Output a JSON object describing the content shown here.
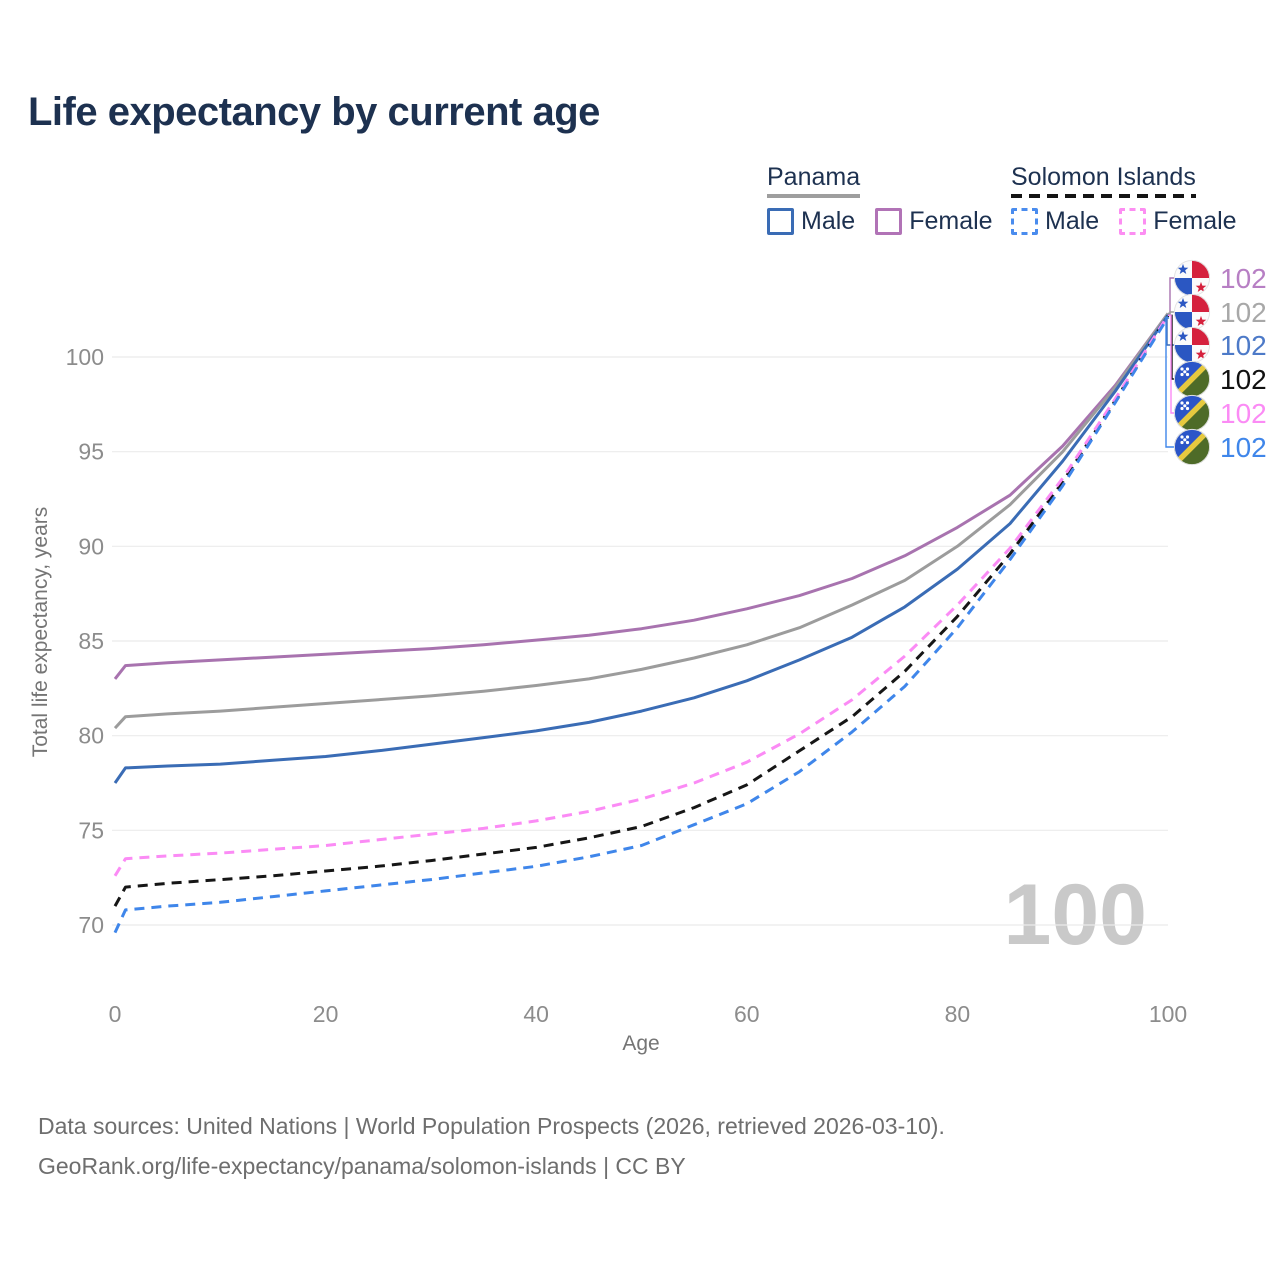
{
  "title": "Life expectancy by current age",
  "legend": {
    "groups": [
      {
        "name": "Panama",
        "line_style": "solid",
        "underline_color": "#9e9e9e",
        "items": [
          {
            "label": "Male",
            "color": "#3a6cb5"
          },
          {
            "label": "Female",
            "color": "#b173b6"
          }
        ]
      },
      {
        "name": "Solomon Islands",
        "line_style": "dashed",
        "underline_color": "#141414",
        "items": [
          {
            "label": "Male",
            "color": "#4a8cee"
          },
          {
            "label": "Female",
            "color": "#fc8ef2"
          }
        ]
      }
    ]
  },
  "chart_data": {
    "type": "line",
    "title": "Life expectancy by current age",
    "xlabel": "Age",
    "ylabel": "Total life expectancy, years",
    "x_ticks": [
      0,
      20,
      40,
      60,
      80,
      100
    ],
    "y_ticks": [
      70,
      75,
      80,
      85,
      90,
      95,
      100
    ],
    "xlim": [
      0,
      100
    ],
    "ylim": [
      68.5,
      103
    ],
    "grid": "horizontal",
    "legend_position": "top-right",
    "watermark": "100",
    "ages": [
      0,
      1,
      5,
      10,
      15,
      20,
      25,
      30,
      35,
      40,
      45,
      50,
      55,
      60,
      65,
      70,
      75,
      80,
      85,
      90,
      95,
      100
    ],
    "series": [
      {
        "name": "Panama Female",
        "country": "Panama",
        "sex": "Female",
        "color": "#a873af",
        "label_color": "#b77fc4",
        "dash": "solid",
        "end_label": "102",
        "label_row": 0,
        "flag": "panama",
        "values": [
          83.0,
          83.7,
          83.85,
          84.0,
          84.15,
          84.3,
          84.45,
          84.6,
          84.8,
          85.05,
          85.3,
          85.65,
          86.1,
          86.7,
          87.4,
          88.3,
          89.5,
          91.0,
          92.7,
          95.3,
          98.5,
          102.3
        ]
      },
      {
        "name": "Panama Both sexes",
        "country": "Panama",
        "sex": "Both",
        "color": "#9c9c9c",
        "label_color": "#a8a8a8",
        "dash": "solid",
        "end_label": "102",
        "label_row": 1,
        "flag": "panama",
        "values": [
          80.4,
          81.0,
          81.15,
          81.3,
          81.5,
          81.7,
          81.9,
          82.1,
          82.35,
          82.65,
          83.0,
          83.5,
          84.1,
          84.8,
          85.7,
          86.9,
          88.2,
          90.0,
          92.2,
          95.0,
          98.4,
          102.3
        ]
      },
      {
        "name": "Panama Male",
        "country": "Panama",
        "sex": "Male",
        "color": "#3a6cb5",
        "label_color": "#4d7ac8",
        "dash": "solid",
        "end_label": "102",
        "label_row": 2,
        "flag": "panama",
        "values": [
          77.5,
          78.3,
          78.4,
          78.5,
          78.7,
          78.9,
          79.2,
          79.55,
          79.9,
          80.25,
          80.7,
          81.3,
          82.0,
          82.9,
          84.0,
          85.2,
          86.8,
          88.8,
          91.2,
          94.5,
          98.2,
          102.2
        ]
      },
      {
        "name": "Solomon Islands Both sexes",
        "country": "Solomon Islands",
        "sex": "Both",
        "color": "#161616",
        "label_color": "#111111",
        "dash": "dashed",
        "end_label": "102",
        "label_row": 3,
        "flag": "solomon",
        "values": [
          71.0,
          72.0,
          72.2,
          72.4,
          72.6,
          72.85,
          73.1,
          73.4,
          73.75,
          74.1,
          74.6,
          75.2,
          76.2,
          77.4,
          79.2,
          81.0,
          83.4,
          86.3,
          89.6,
          93.4,
          97.7,
          102.2
        ]
      },
      {
        "name": "Solomon Islands Female",
        "country": "Solomon Islands",
        "sex": "Female",
        "color": "#fb8bf5",
        "label_color": "#fb8bf5",
        "dash": "dashed",
        "end_label": "102",
        "label_row": 4,
        "flag": "solomon",
        "values": [
          72.6,
          73.5,
          73.65,
          73.8,
          74.0,
          74.2,
          74.5,
          74.8,
          75.1,
          75.5,
          76.0,
          76.65,
          77.5,
          78.6,
          80.1,
          81.9,
          84.2,
          86.9,
          89.9,
          93.6,
          97.8,
          102.2
        ]
      },
      {
        "name": "Solomon Islands Male",
        "country": "Solomon Islands",
        "sex": "Male",
        "color": "#3f86ea",
        "label_color": "#3f86ea",
        "dash": "dashed",
        "end_label": "102",
        "label_row": 5,
        "flag": "solomon",
        "values": [
          69.6,
          70.8,
          71.0,
          71.2,
          71.5,
          71.8,
          72.1,
          72.4,
          72.75,
          73.1,
          73.6,
          74.2,
          75.3,
          76.4,
          78.1,
          80.2,
          82.6,
          85.7,
          89.3,
          93.2,
          97.6,
          102.1
        ]
      }
    ]
  },
  "footer": {
    "line1": "Data sources: United Nations | World Population Prospects (2026, retrieved 2026-03-10).",
    "line2": "GeoRank.org/life-expectancy/panama/solomon-islands | CC BY"
  }
}
